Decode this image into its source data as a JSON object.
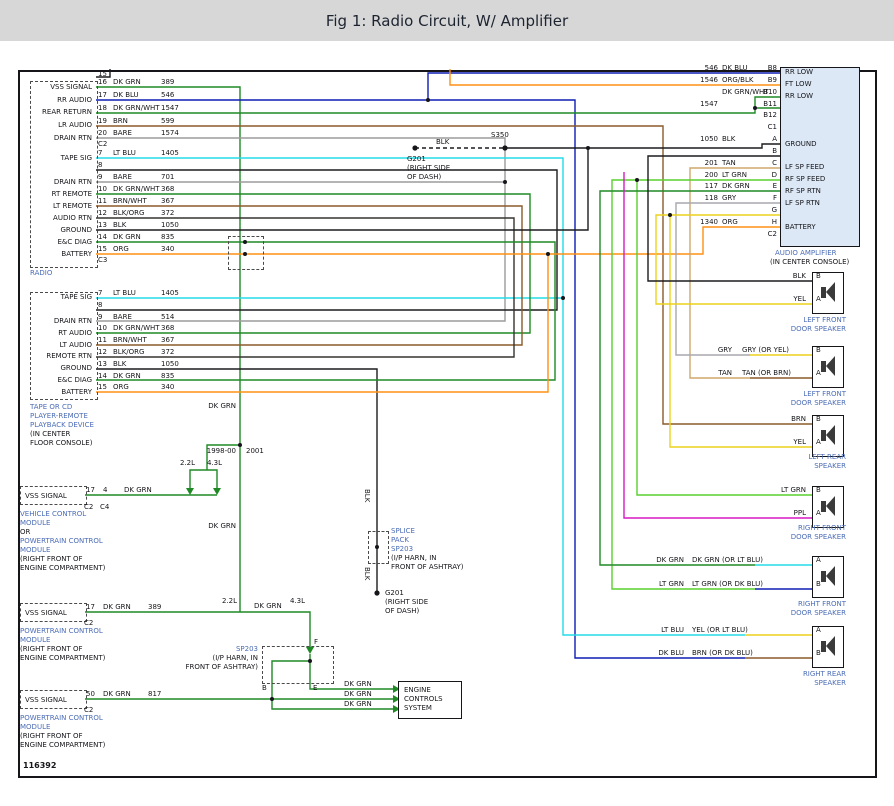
{
  "header": {
    "title": "Fig 1: Radio Circuit, W/ Amplifier"
  },
  "figure_id": "116392",
  "colors": {
    "BLK": "#1c1c1e",
    "BARE": "#9b9b9b",
    "DK GRN": "#1f8a25",
    "DK GRN/WHT": "#1f8a25",
    "LT GRN": "#59d12e",
    "DK BLU": "#0f1db4",
    "LT BLU": "#23dbe8",
    "BRN": "#8a5a2a",
    "BRN/WHT": "#8a5a2a",
    "TAN": "#d0a76b",
    "ORG": "#ff9014",
    "ORG/BLK": "#ff9014",
    "YEL": "#ecd21c",
    "GRY": "#a9a9ad",
    "PPL": "#d619c3",
    "BLK/ORG": "#35332f",
    "caption_blue": "#4b6cb7"
  },
  "radio": {
    "caption": "RADIO",
    "top_pin": "15",
    "c2": "C2",
    "c3": "C3",
    "c2_rows": [
      {
        "label": "VSS SIGNAL",
        "pin": "16",
        "wire": "DK GRN",
        "circuit": "389"
      },
      {
        "label": "RR AUDIO",
        "pin": "17",
        "wire": "DK BLU",
        "circuit": "546"
      },
      {
        "label": "REAR RETURN",
        "pin": "18",
        "wire": "DK GRN/WHT",
        "circuit": "1547"
      },
      {
        "label": "LR AUDIO",
        "pin": "19",
        "wire": "BRN",
        "circuit": "599"
      },
      {
        "label": "DRAIN RTN",
        "pin": "20",
        "wire": "BARE",
        "circuit": "1574"
      }
    ],
    "c3_rows": [
      {
        "label": "TAPE SIG",
        "pin": "7",
        "wire": "LT BLU",
        "circuit": "1405"
      },
      {
        "label": "",
        "pin": "8",
        "wire": "",
        "circuit": ""
      },
      {
        "label": "DRAIN RTN",
        "pin": "9",
        "wire": "BARE",
        "circuit": "701"
      },
      {
        "label": "RT REMOTE",
        "pin": "10",
        "wire": "DK GRN/WHT",
        "circuit": "368"
      },
      {
        "label": "LT REMOTE",
        "pin": "11",
        "wire": "BRN/WHT",
        "circuit": "367"
      },
      {
        "label": "AUDIO RTN",
        "pin": "12",
        "wire": "BLK/ORG",
        "circuit": "372"
      },
      {
        "label": "GROUND",
        "pin": "13",
        "wire": "BLK",
        "circuit": "1050"
      },
      {
        "label": "E&C DIAG",
        "pin": "14",
        "wire": "DK GRN",
        "circuit": "835"
      },
      {
        "label": "BATTERY",
        "pin": "15",
        "wire": "ORG",
        "circuit": "340"
      }
    ]
  },
  "tape_deck": {
    "caption": [
      "TAPE OR CD",
      "PLAYER-REMOTE",
      "PLAYBACK DEVICE",
      "(IN CENTER",
      "FLOOR CONSOLE)"
    ],
    "rows": [
      {
        "label": "TAPE SIG",
        "pin": "7",
        "wire": "LT BLU",
        "circuit": "1405"
      },
      {
        "label": "",
        "pin": "8",
        "wire": "",
        "circuit": ""
      },
      {
        "label": "DRAIN RTN",
        "pin": "9",
        "wire": "BARE",
        "circuit": "514"
      },
      {
        "label": "RT AUDIO",
        "pin": "10",
        "wire": "DK GRN/WHT",
        "circuit": "368"
      },
      {
        "label": "LT AUDIO",
        "pin": "11",
        "wire": "BRN/WHT",
        "circuit": "367"
      },
      {
        "label": "REMOTE RTN",
        "pin": "12",
        "wire": "BLK/ORG",
        "circuit": "372"
      },
      {
        "label": "GROUND",
        "pin": "13",
        "wire": "BLK",
        "circuit": "1050"
      },
      {
        "label": "E&C DIAG",
        "pin": "14",
        "wire": "DK GRN",
        "circuit": "835"
      },
      {
        "label": "BATTERY",
        "pin": "15",
        "wire": "ORG",
        "circuit": "340"
      }
    ]
  },
  "amplifier": {
    "caption": [
      "AUDIO AMPLIFIER",
      "(IN CENTER CONSOLE)"
    ],
    "rows": [
      {
        "circuit": "546",
        "wire": "DK BLU",
        "pin": "B8",
        "label": "RR LOW"
      },
      {
        "circuit": "1546",
        "wire": "ORG/BLK",
        "pin": "B9",
        "label": "FT LOW"
      },
      {
        "circuit": "",
        "wire": "DK GRN/WHT",
        "pin": "B10",
        "label": "RR LOW"
      },
      {
        "circuit": "1547",
        "wire": "",
        "pin": "B11",
        "label": ""
      },
      {
        "circuit": "",
        "wire": "",
        "pin": "B12",
        "label": ""
      },
      {
        "circuit": "",
        "wire": "",
        "pin": "C1",
        "label": ""
      },
      {
        "circuit": "1050",
        "wire": "BLK",
        "pin": "A",
        "label": "GROUND"
      },
      {
        "circuit": "",
        "wire": "",
        "pin": "B",
        "label": ""
      },
      {
        "circuit": "201",
        "wire": "TAN",
        "pin": "C",
        "label": "LF SP FEED"
      },
      {
        "circuit": "200",
        "wire": "LT GRN",
        "pin": "D",
        "label": "RF SP FEED"
      },
      {
        "circuit": "117",
        "wire": "DK GRN",
        "pin": "E",
        "label": "RF SP RTN"
      },
      {
        "circuit": "118",
        "wire": "GRY",
        "pin": "F",
        "label": "LF SP RTN"
      },
      {
        "circuit": "",
        "wire": "",
        "pin": "G",
        "label": ""
      },
      {
        "circuit": "1340",
        "wire": "ORG",
        "pin": "H",
        "label": "BATTERY"
      },
      {
        "circuit": "",
        "wire": "",
        "pin": "C2",
        "label": ""
      }
    ]
  },
  "speakers": [
    {
      "caption": [
        "LEFT FRONT",
        "DOOR SPEAKER"
      ],
      "rows": [
        {
          "wire": "BLK",
          "alt": "",
          "term": "B"
        },
        {
          "wire": "YEL",
          "alt": "",
          "term": "A"
        }
      ]
    },
    {
      "caption": [
        "LEFT FRONT",
        "DOOR SPEAKER"
      ],
      "rows": [
        {
          "wire": "GRY",
          "alt": "GRY (OR YEL)",
          "term": "B"
        },
        {
          "wire": "TAN",
          "alt": "TAN (OR BRN)",
          "term": "A"
        }
      ]
    },
    {
      "caption": [
        "LEFT REAR",
        "SPEAKER"
      ],
      "rows": [
        {
          "wire": "BRN",
          "alt": "",
          "term": "B"
        },
        {
          "wire": "YEL",
          "alt": "",
          "term": "A"
        }
      ]
    },
    {
      "caption": [
        "RIGHT FRONT",
        "DOOR SPEAKER"
      ],
      "rows": [
        {
          "wire": "LT GRN",
          "alt": "",
          "term": "B"
        },
        {
          "wire": "PPL",
          "alt": "",
          "term": "A"
        }
      ]
    },
    {
      "caption": [
        "RIGHT FRONT",
        "DOOR SPEAKER"
      ],
      "rows": [
        {
          "wire": "DK GRN",
          "alt": "DK GRN (OR LT BLU)",
          "term": "A"
        },
        {
          "wire": "LT GRN",
          "alt": "LT GRN (OR DK BLU)",
          "term": "B"
        }
      ]
    },
    {
      "caption": [
        "RIGHT REAR",
        "SPEAKER"
      ],
      "rows": [
        {
          "wire": "LT BLU",
          "alt": "YEL (OR LT BLU)",
          "term": "A"
        },
        {
          "wire": "DK BLU",
          "alt": "BRN (OR DK BLU)",
          "term": "B"
        }
      ]
    }
  ],
  "vcm": {
    "label": "VSS SIGNAL",
    "pin_a": "17",
    "pin_b": "4",
    "wire": "DK GRN",
    "conn_a": "C2",
    "conn_b": "C4",
    "engine_a": "2.2L",
    "engine_b": "4.3L",
    "caption": [
      "VEHICLE CONTROL",
      "MODULE",
      "OR",
      "POWERTRAIN CONTROL",
      "MODULE",
      "(RIGHT FRONT OF",
      "ENGINE COMPARTMENT)"
    ]
  },
  "years": {
    "early": "1998-00",
    "late": "2001"
  },
  "pcm_mid": {
    "label": "VSS SIGNAL",
    "pin": "17",
    "wire": "DK GRN",
    "circuit": "389",
    "conn": "C2",
    "engine_a": "2.2L",
    "engine_b": "4.3L",
    "wire2": "DK GRN",
    "caption": [
      "POWERTRAIN CONTROL",
      "MODULE",
      "(RIGHT FRONT OF",
      "ENGINE COMPARTMENT)"
    ]
  },
  "pcm_low": {
    "label": "VSS SIGNAL",
    "pin": "50",
    "wire": "DK GRN",
    "circuit": "817",
    "conn": "C2",
    "caption": [
      "POWERTRAIN CONTROL",
      "MODULE",
      "(RIGHT FRONT OF",
      "ENGINE COMPARTMENT)"
    ]
  },
  "grounds": {
    "s350": "S350",
    "wire": "BLK",
    "g201a": [
      "G201",
      "(RIGHT SIDE",
      "OF DASH)"
    ],
    "g201b": [
      "G201",
      "(RIGHT SIDE",
      "OF DASH)"
    ]
  },
  "splice_pack_upper": {
    "caption_blue": [
      "SPLICE",
      "PACK",
      "SP203"
    ],
    "caption_black": [
      "(I/P HARN, IN",
      "FRONT OF ASHTRAY)"
    ],
    "wire_above": "BLK",
    "wire_below": "BLK"
  },
  "splice_pack_lower": {
    "name": "SP203",
    "loc": [
      "(I/P HARN, IN",
      "FRONT OF ASHTRAY)"
    ],
    "pin_f": "F",
    "pin_b": "B",
    "pin_e": "E"
  },
  "engine_controls": {
    "lines": [
      "ENGINE",
      "CONTROLS",
      "SYSTEM"
    ],
    "wires": [
      "DK GRN",
      "DK GRN",
      "DK GRN"
    ]
  },
  "floating": {
    "dk_grn_upper": "DK GRN",
    "dk_grn_mid": "DK GRN"
  }
}
